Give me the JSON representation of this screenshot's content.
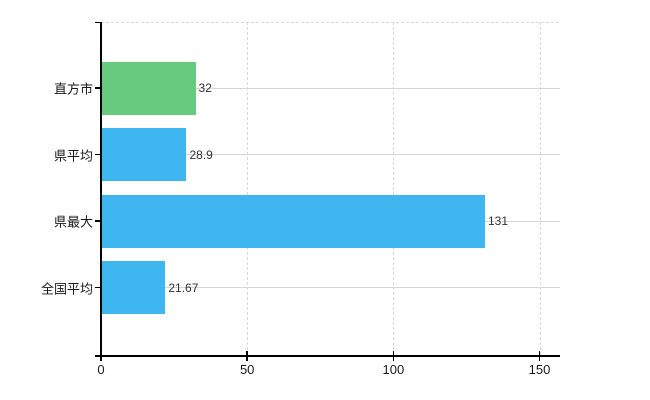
{
  "chart_data": {
    "type": "bar",
    "orientation": "horizontal",
    "title": "",
    "categories": [
      "直方市",
      "県平均",
      "県最大",
      "全国平均"
    ],
    "values": [
      32,
      28.9,
      131,
      21.67
    ],
    "value_labels": [
      "32",
      "28.9",
      "131",
      "21.67"
    ],
    "bar_colors": [
      "#68ca7e",
      "#3eb7f0",
      "#3eb7f0",
      "#3eb7f0"
    ],
    "x_ticks": [
      0,
      50,
      100,
      150
    ],
    "x_tick_labels": [
      "0",
      "50",
      "100",
      "150"
    ],
    "xlim": [
      0,
      157
    ],
    "ylabel": "",
    "xlabel": "",
    "grid": true,
    "grid_style": "horizontal-solid-at-category-centers, vertical-dashed-at-ticks",
    "legend_position": "none"
  },
  "colors": {
    "bar_green": "#68ca7e",
    "bar_blue": "#3eb7f0",
    "grid_solid": "#d3d8d3",
    "grid_dashed": "#d9d9d9",
    "axis": "#000000",
    "label_text": "#1a1a1a",
    "value_text": "#333333",
    "background": "#ffffff"
  }
}
